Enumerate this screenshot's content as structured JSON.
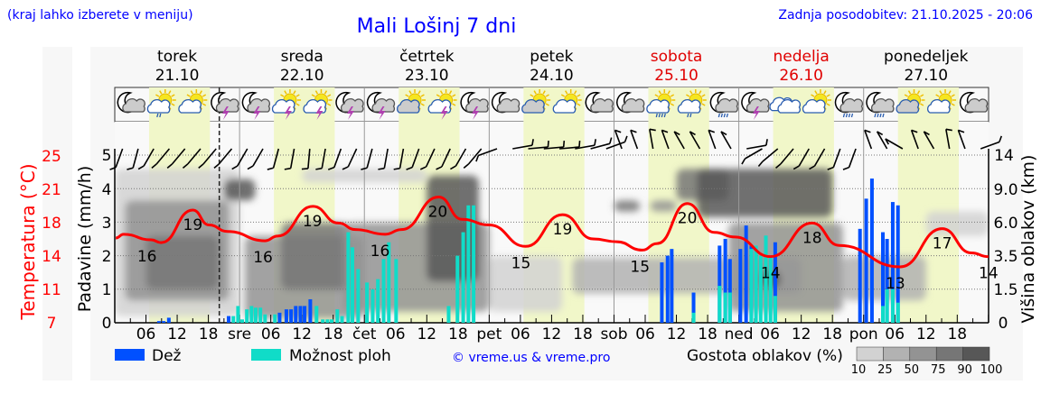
{
  "header": {
    "location_hint": "(kraj lahko izberete v meniju)",
    "title": "Mali Lošinj 7 dni",
    "updated": "Zadnja posodobitev: 21.10.2025 - 20:06"
  },
  "days": [
    {
      "name": "torek",
      "date": "21.10",
      "weekend": false,
      "abbr": ""
    },
    {
      "name": "sreda",
      "date": "22.10",
      "weekend": false,
      "abbr": "sre"
    },
    {
      "name": "četrtek",
      "date": "23.10",
      "weekend": false,
      "abbr": "čet"
    },
    {
      "name": "petek",
      "date": "24.10",
      "weekend": false,
      "abbr": "pet"
    },
    {
      "name": "sobota",
      "date": "25.10",
      "weekend": true,
      "abbr": "sob"
    },
    {
      "name": "nedelja",
      "date": "26.10",
      "weekend": true,
      "abbr": "ned"
    },
    {
      "name": "ponedeljek",
      "date": "27.10",
      "weekend": false,
      "abbr": "pon"
    }
  ],
  "hour_ticks": [
    "06",
    "12",
    "18"
  ],
  "legend": {
    "rain": "Dež",
    "showers": "Možnost ploh",
    "copyright": "© vreme.us & vreme.pro",
    "cloud_density": "Gostota oblakov (%)",
    "density_levels": [
      "10",
      "25",
      "50",
      "75",
      "90",
      "100"
    ]
  },
  "colors": {
    "rain": "#0050ff",
    "showers": "#10dcc8",
    "temperature": "#ff0000",
    "daylight": "#f1f7c9",
    "density": [
      "#d2d2d2",
      "#b2b2b2",
      "#939393",
      "#767676",
      "#575757"
    ]
  },
  "chart_data": {
    "type": "line",
    "title": "Mali Lošinj 7 dni",
    "x_unit": "hours since 21.10 00:00",
    "xlim": [
      0,
      168
    ],
    "now_hour": 20.1,
    "axes": {
      "temperature": {
        "label": "Temperatura (°C)",
        "ticks": [
          "25",
          "21",
          "18",
          "14",
          "11",
          "7"
        ],
        "range": [
          7,
          25
        ]
      },
      "precipitation": {
        "label": "Padavine (mm/h)",
        "ticks": [
          "5",
          "4",
          "3",
          "2",
          "1",
          "0"
        ],
        "range": [
          0,
          5
        ]
      },
      "cloud_height": {
        "label": "Višina oblakov (km)",
        "ticks": [
          "14",
          "9.0",
          "6.0",
          "3.5",
          "1.5",
          "0"
        ]
      }
    },
    "temperature": [
      [
        0.2,
        16.1
      ],
      [
        1.7,
        16.5
      ],
      [
        7,
        15.9
      ],
      [
        8.9,
        15.6
      ],
      [
        15,
        19.1
      ],
      [
        18.1,
        17.5
      ],
      [
        21.7,
        16.8
      ],
      [
        28.9,
        15.8
      ],
      [
        31.3,
        16.3
      ],
      [
        38.1,
        19.5
      ],
      [
        43,
        17.7
      ],
      [
        46.3,
        17.0
      ],
      [
        52,
        16.5
      ],
      [
        55.1,
        17.0
      ],
      [
        62.3,
        20.5
      ],
      [
        66.8,
        18.1
      ],
      [
        72,
        17.5
      ],
      [
        79,
        15.2
      ],
      [
        86.1,
        18.6
      ],
      [
        92,
        16.0
      ],
      [
        96.5,
        15.7
      ],
      [
        101.4,
        14.8
      ],
      [
        104.3,
        15.5
      ],
      [
        110.1,
        19.8
      ],
      [
        115.3,
        16.7
      ],
      [
        119.3,
        16.2
      ],
      [
        126.1,
        14.1
      ],
      [
        134.1,
        17.7
      ],
      [
        139.3,
        15.3
      ],
      [
        151,
        13.0
      ],
      [
        159.1,
        17.1
      ],
      [
        164.7,
        14.5
      ],
      [
        168,
        14.1
      ]
    ],
    "temperature_labels": [
      [
        6.2,
        "16"
      ],
      [
        15,
        "19"
      ],
      [
        28.5,
        "16"
      ],
      [
        38,
        "19"
      ],
      [
        51,
        "16"
      ],
      [
        62.1,
        "20"
      ],
      [
        78.1,
        "15"
      ],
      [
        86.1,
        "19"
      ],
      [
        101,
        "15"
      ],
      [
        110.1,
        "20"
      ],
      [
        126.1,
        "14"
      ],
      [
        134.1,
        "18"
      ],
      [
        150.1,
        "13"
      ],
      [
        159.1,
        "17"
      ],
      [
        168,
        "14"
      ]
    ],
    "precipitation_bars": [
      [
        8.5,
        0.05,
        0
      ],
      [
        9.4,
        0.05,
        0
      ],
      [
        10.4,
        0.15,
        0
      ],
      [
        21.9,
        0.2,
        0
      ],
      [
        22.8,
        0,
        0.2
      ],
      [
        23.7,
        0,
        0.5
      ],
      [
        24.5,
        0,
        0.1
      ],
      [
        25.4,
        0,
        0.4
      ],
      [
        26.3,
        0,
        0.5
      ],
      [
        27.1,
        0,
        0.45
      ],
      [
        28,
        0,
        0.45
      ],
      [
        28.9,
        0,
        0.25
      ],
      [
        30.8,
        0,
        0.25
      ],
      [
        31.7,
        0.3,
        0
      ],
      [
        33,
        0.4,
        0
      ],
      [
        33.9,
        0.4,
        0
      ],
      [
        34.8,
        0.5,
        0
      ],
      [
        35.7,
        0.5,
        0
      ],
      [
        36.5,
        0.5,
        0
      ],
      [
        37.6,
        0.7,
        0
      ],
      [
        38.8,
        0,
        0.5
      ],
      [
        40,
        0,
        0.1
      ],
      [
        40.9,
        0,
        0.1
      ],
      [
        41.7,
        0,
        0.1
      ],
      [
        42.8,
        0,
        0.4
      ],
      [
        43.7,
        0,
        0.2
      ],
      [
        44.9,
        0,
        2.7
      ],
      [
        45.7,
        0,
        2.25
      ],
      [
        46.8,
        0,
        1.6
      ],
      [
        48.5,
        0,
        1.2
      ],
      [
        49.6,
        0,
        1.0
      ],
      [
        50.6,
        0,
        1.3
      ],
      [
        51.7,
        0,
        1.9
      ],
      [
        52.7,
        0,
        2.4
      ],
      [
        54.1,
        0,
        1.9
      ],
      [
        64.2,
        0,
        0.5
      ],
      [
        65.9,
        0,
        2.0
      ],
      [
        67,
        0,
        2.7
      ],
      [
        68,
        0,
        3.5
      ],
      [
        69,
        0,
        3.5
      ],
      [
        105.2,
        1.8,
        0
      ],
      [
        106.3,
        2.0,
        0
      ],
      [
        107.1,
        2.2,
        0
      ],
      [
        111.3,
        0.9,
        0.3
      ],
      [
        116.3,
        2.3,
        1.1
      ],
      [
        117.4,
        2.5,
        0.9
      ],
      [
        118.3,
        1.9,
        0.9
      ],
      [
        120.3,
        2.2,
        0
      ],
      [
        121.4,
        2.9,
        0
      ],
      [
        122.4,
        2.3,
        2.2
      ],
      [
        123.3,
        0,
        2.3
      ],
      [
        124.2,
        0,
        2.0
      ],
      [
        125.2,
        0,
        2.6
      ],
      [
        126.1,
        0,
        2.0
      ],
      [
        127,
        2.4,
        0.8
      ],
      [
        143.3,
        2.8,
        0
      ],
      [
        144.5,
        3.7,
        0
      ],
      [
        145.6,
        4.3,
        0
      ],
      [
        147.7,
        2.7,
        0.5
      ],
      [
        148.5,
        2.5,
        1.0
      ],
      [
        149.6,
        3.6,
        1.0
      ],
      [
        150.6,
        3.5,
        0.6
      ]
    ],
    "cloud_regions": [
      [
        0,
        24,
        0.3,
        12,
        25
      ],
      [
        2,
        22,
        1,
        8,
        50
      ],
      [
        6,
        20,
        1.5,
        5,
        70
      ],
      [
        21,
        27,
        8,
        10.5,
        90
      ],
      [
        25,
        48,
        0.2,
        5,
        50
      ],
      [
        32,
        45,
        1.5,
        6,
        70
      ],
      [
        36,
        60,
        10,
        12,
        30
      ],
      [
        44,
        72,
        0.5,
        6,
        55
      ],
      [
        60,
        70,
        2,
        11,
        90
      ],
      [
        72,
        86,
        0.5,
        3.5,
        35
      ],
      [
        88,
        132,
        1.3,
        3.4,
        45
      ],
      [
        96,
        101,
        7,
        8,
        60
      ],
      [
        103,
        108,
        7,
        8,
        55
      ],
      [
        108,
        118,
        8,
        12,
        75
      ],
      [
        112,
        138,
        6.5,
        12,
        90
      ],
      [
        118,
        140,
        0.5,
        6,
        50
      ],
      [
        124,
        128,
        1.6,
        2.6,
        90
      ],
      [
        140,
        156,
        1,
        3.5,
        45
      ],
      [
        156,
        168,
        5,
        7,
        20
      ]
    ],
    "weather_icons": [
      "moon-cloud",
      "sun-cloud-drizzle",
      "sun-cloud",
      "moon-cloud-storm",
      "moon-cloud-storm",
      "sun-cloud-storm",
      "sun-cloud-storm",
      "moon-cloud-storm",
      "moon-cloud-storm",
      "sun-cloud",
      "sun-cloud-storm",
      "moon-cloud-storm",
      "moon-cloud",
      "sun-cloud",
      "sun-cloud",
      "moon-cloud",
      "moon-cloud",
      "sun-cloud-rain",
      "sun-cloud-drizzle",
      "moon-cloud-rain",
      "moon-cloud-storm",
      "cloud",
      "sun-cloud",
      "moon-cloud-rain",
      "moon-cloud-rain",
      "sun-cloud",
      "sun-cloud",
      "moon-cloud"
    ],
    "wind_directions": [
      340,
      345,
      330,
      320,
      320,
      320,
      320,
      320,
      330,
      330,
      345,
      350,
      355,
      350,
      340,
      335,
      345,
      350,
      350,
      340,
      335,
      335,
      330,
      320,
      290,
      100,
      95,
      95,
      95,
      100,
      105,
      110,
      200,
      200,
      190,
      200,
      210,
      210,
      200,
      210,
      100,
      300,
      310,
      320,
      330,
      330,
      340,
      340,
      200,
      210,
      240,
      200,
      210,
      190,
      200,
      110
    ]
  }
}
